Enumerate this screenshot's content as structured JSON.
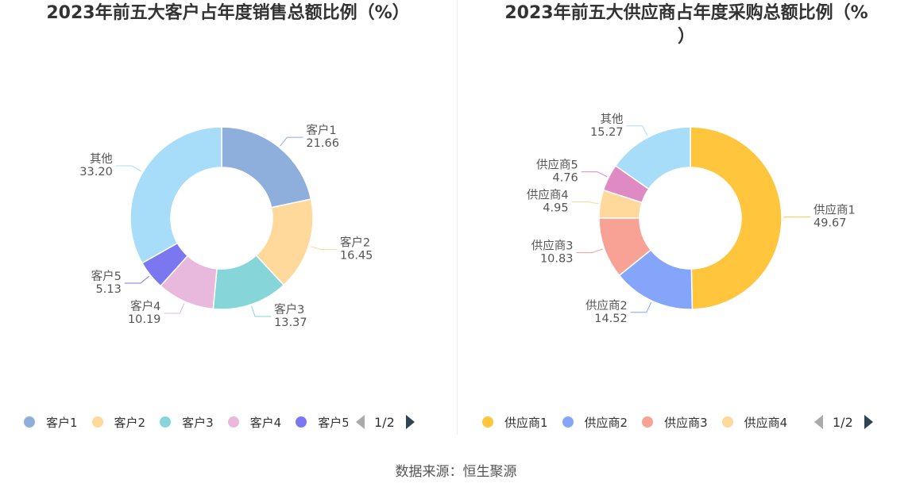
{
  "chart_data": [
    {
      "type": "pie",
      "variant": "donut",
      "title": "2023年前五大客户占年度销售总额比例（%）",
      "categories": [
        "客户1",
        "客户2",
        "客户3",
        "客户4",
        "客户5",
        "其他"
      ],
      "values": [
        21.66,
        16.45,
        13.37,
        10.19,
        5.13,
        33.2
      ],
      "value_labels": [
        "21.66",
        "16.45",
        "13.37",
        "10.19",
        "5.13",
        "33.20"
      ],
      "colors": [
        "#8eaedb",
        "#ffd89b",
        "#86d5d8",
        "#e8b9dc",
        "#7b77f0",
        "#a8ddf9"
      ],
      "legend_position": "bottom",
      "legend_visible_count": 5,
      "pager": "1/2"
    },
    {
      "type": "pie",
      "variant": "donut",
      "title": "2023年前五大供应商占年度采购总额比例（%\n）",
      "categories": [
        "供应商1",
        "供应商2",
        "供应商3",
        "供应商4",
        "供应商5",
        "其他"
      ],
      "values": [
        49.67,
        14.52,
        10.83,
        4.95,
        4.76,
        15.27
      ],
      "value_labels": [
        "49.67",
        "14.52",
        "10.83",
        "4.95",
        "4.76",
        "15.27"
      ],
      "colors": [
        "#ffc53d",
        "#85a5fb",
        "#f7a295",
        "#ffd89b",
        "#e08ac4",
        "#a8ddf9"
      ],
      "legend_position": "bottom",
      "legend_visible_count": 4,
      "pager": "1/2"
    }
  ],
  "footer": {
    "source": "数据来源：恒生聚源"
  }
}
